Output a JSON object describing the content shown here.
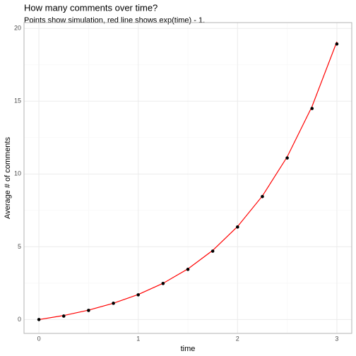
{
  "chart_data": {
    "type": "scatter_line",
    "title": "How many comments over time?",
    "subtitle": "Points show simulation, red line shows exp(time) - 1.",
    "x_label": "time",
    "y_label": "Average # of comments",
    "xlim": [
      -0.15,
      3.15
    ],
    "xticks": [
      0,
      1,
      2,
      3
    ],
    "ylim": [
      -0.95,
      20.4
    ],
    "yticks": [
      0,
      5,
      10,
      15,
      20
    ],
    "grid": true,
    "minor_grid": true,
    "series": [
      {
        "name": "simulation",
        "kind": "points",
        "color": "#000000",
        "x": [
          0,
          0.25,
          0.5,
          0.75,
          1,
          1.25,
          1.5,
          1.75,
          2,
          2.25,
          2.5,
          2.75,
          3
        ],
        "values": [
          0,
          0.24,
          0.63,
          1.12,
          1.7,
          2.48,
          3.45,
          4.7,
          6.36,
          8.45,
          11.1,
          14.5,
          18.93
        ]
      },
      {
        "name": "exp(time) - 1",
        "kind": "line",
        "color": "#ff0000",
        "x": [
          0,
          0.25,
          0.5,
          0.75,
          1,
          1.25,
          1.5,
          1.75,
          2,
          2.25,
          2.5,
          2.75,
          3
        ],
        "values": [
          0,
          0.28,
          0.65,
          1.12,
          1.72,
          2.49,
          3.48,
          4.75,
          6.39,
          8.49,
          11.18,
          14.64,
          19.09
        ]
      }
    ]
  }
}
